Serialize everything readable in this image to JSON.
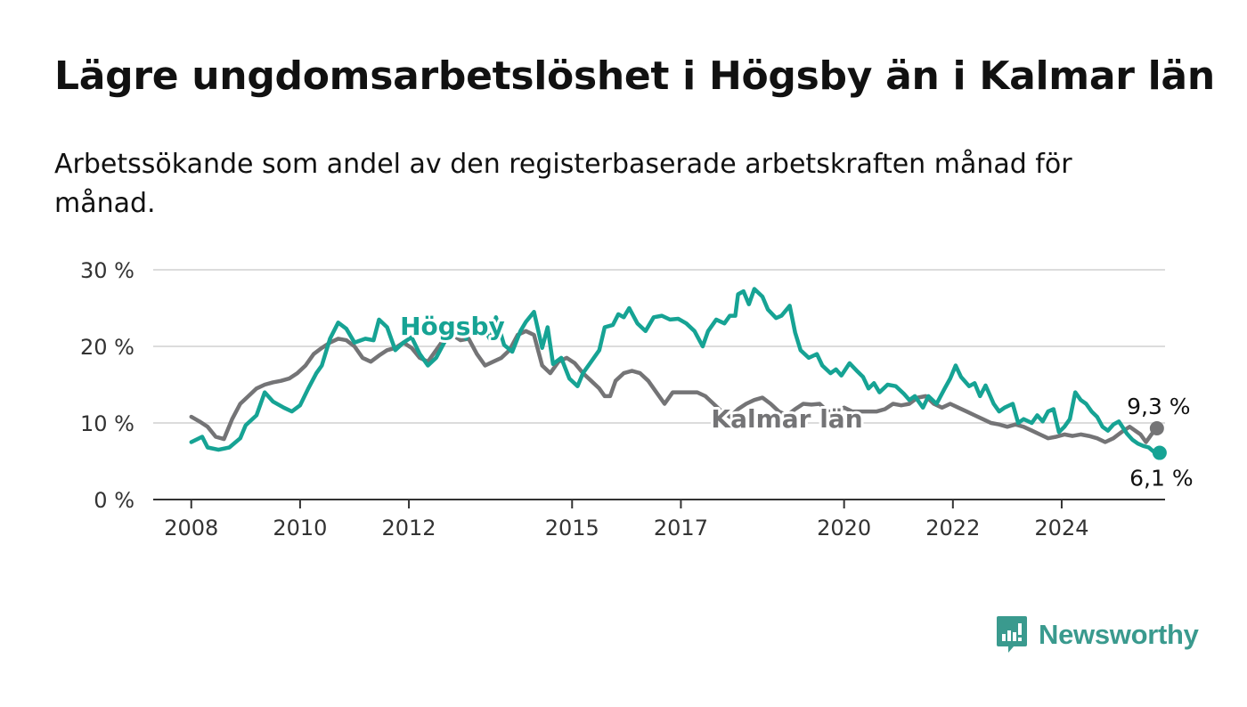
{
  "title": "Lägre ungdomsarbetslöshet i Högsby än i Kalmar län",
  "subtitle": "Arbetssökande som andel av den registerbaserade arbetskraften månad för månad.",
  "brand": {
    "name": "Newsworthy",
    "icon": "newsworthy-logo-icon",
    "color": "#3a9a8e"
  },
  "chart_data": {
    "type": "line",
    "xlim": [
      2007.3,
      2025.9
    ],
    "ylim": [
      0,
      30
    ],
    "x_ticks": [
      2008,
      2010,
      2012,
      2015,
      2017,
      2020,
      2022,
      2024
    ],
    "y_ticks": [
      {
        "value": 0,
        "label": "0 %"
      },
      {
        "value": 10,
        "label": "10 %"
      },
      {
        "value": 20,
        "label": "20 %"
      },
      {
        "value": 30,
        "label": "30 %"
      }
    ],
    "grid": true,
    "series": [
      {
        "name": "Högsby",
        "color": "#16a394",
        "label_at": [
          2012.8,
          21.5
        ],
        "end_label": "6,1 %",
        "points": [
          [
            2008.0,
            7.5
          ],
          [
            2008.2,
            8.2
          ],
          [
            2008.3,
            6.8
          ],
          [
            2008.5,
            6.5
          ],
          [
            2008.7,
            6.8
          ],
          [
            2008.9,
            8.0
          ],
          [
            2009.0,
            9.7
          ],
          [
            2009.2,
            11.0
          ],
          [
            2009.35,
            14.0
          ],
          [
            2009.5,
            12.8
          ],
          [
            2009.7,
            12.0
          ],
          [
            2009.85,
            11.5
          ],
          [
            2010.0,
            12.3
          ],
          [
            2010.15,
            14.5
          ],
          [
            2010.3,
            16.5
          ],
          [
            2010.4,
            17.5
          ],
          [
            2010.55,
            21.0
          ],
          [
            2010.7,
            23.1
          ],
          [
            2010.85,
            22.3
          ],
          [
            2011.0,
            20.5
          ],
          [
            2011.2,
            21.0
          ],
          [
            2011.35,
            20.8
          ],
          [
            2011.45,
            23.5
          ],
          [
            2011.6,
            22.5
          ],
          [
            2011.75,
            19.5
          ],
          [
            2011.9,
            20.5
          ],
          [
            2012.05,
            21.2
          ],
          [
            2012.2,
            19.0
          ],
          [
            2012.35,
            17.5
          ],
          [
            2012.5,
            18.5
          ],
          [
            2012.65,
            20.5
          ],
          [
            2012.8,
            22.5
          ],
          [
            2012.95,
            23.0
          ],
          [
            2013.05,
            21.0
          ],
          [
            2013.2,
            23.3
          ],
          [
            2013.35,
            22.8
          ],
          [
            2013.5,
            20.8
          ],
          [
            2013.6,
            23.8
          ],
          [
            2013.75,
            20.2
          ],
          [
            2013.9,
            19.3
          ],
          [
            2014.05,
            22.0
          ],
          [
            2014.15,
            23.2
          ],
          [
            2014.3,
            24.5
          ],
          [
            2014.45,
            19.8
          ],
          [
            2014.55,
            22.5
          ],
          [
            2014.65,
            17.7
          ],
          [
            2014.8,
            18.5
          ],
          [
            2014.95,
            15.8
          ],
          [
            2015.1,
            14.8
          ],
          [
            2015.2,
            16.5
          ],
          [
            2015.35,
            18.0
          ],
          [
            2015.5,
            19.5
          ],
          [
            2015.6,
            22.5
          ],
          [
            2015.75,
            22.8
          ],
          [
            2015.85,
            24.2
          ],
          [
            2015.95,
            23.8
          ],
          [
            2016.05,
            25.0
          ],
          [
            2016.2,
            23.0
          ],
          [
            2016.35,
            22.0
          ],
          [
            2016.5,
            23.8
          ],
          [
            2016.65,
            24.0
          ],
          [
            2016.8,
            23.5
          ],
          [
            2016.95,
            23.6
          ],
          [
            2017.1,
            23.0
          ],
          [
            2017.25,
            22.0
          ],
          [
            2017.4,
            20.0
          ],
          [
            2017.5,
            22.0
          ],
          [
            2017.65,
            23.5
          ],
          [
            2017.8,
            23.0
          ],
          [
            2017.9,
            24.0
          ],
          [
            2018.0,
            24.0
          ],
          [
            2018.05,
            26.8
          ],
          [
            2018.15,
            27.2
          ],
          [
            2018.25,
            25.5
          ],
          [
            2018.35,
            27.5
          ],
          [
            2018.5,
            26.5
          ],
          [
            2018.6,
            24.8
          ],
          [
            2018.75,
            23.7
          ],
          [
            2018.85,
            24.0
          ],
          [
            2019.0,
            25.3
          ],
          [
            2019.1,
            21.8
          ],
          [
            2019.2,
            19.5
          ],
          [
            2019.35,
            18.5
          ],
          [
            2019.5,
            19.0
          ],
          [
            2019.6,
            17.5
          ],
          [
            2019.75,
            16.5
          ],
          [
            2019.85,
            17.0
          ],
          [
            2019.95,
            16.2
          ],
          [
            2020.1,
            17.8
          ],
          [
            2020.25,
            16.7
          ],
          [
            2020.35,
            16.0
          ],
          [
            2020.45,
            14.5
          ],
          [
            2020.55,
            15.2
          ],
          [
            2020.65,
            14.0
          ],
          [
            2020.8,
            15.0
          ],
          [
            2020.95,
            14.8
          ],
          [
            2021.1,
            13.8
          ],
          [
            2021.2,
            13.0
          ],
          [
            2021.3,
            13.5
          ],
          [
            2021.45,
            12.0
          ],
          [
            2021.55,
            13.5
          ],
          [
            2021.7,
            12.5
          ],
          [
            2021.85,
            14.5
          ],
          [
            2021.95,
            15.8
          ],
          [
            2022.05,
            17.5
          ],
          [
            2022.15,
            16.0
          ],
          [
            2022.3,
            14.8
          ],
          [
            2022.4,
            15.2
          ],
          [
            2022.5,
            13.5
          ],
          [
            2022.6,
            14.9
          ],
          [
            2022.75,
            12.5
          ],
          [
            2022.85,
            11.5
          ],
          [
            2022.95,
            12.0
          ],
          [
            2023.1,
            12.5
          ],
          [
            2023.2,
            10.0
          ],
          [
            2023.3,
            10.5
          ],
          [
            2023.45,
            10.0
          ],
          [
            2023.55,
            11.0
          ],
          [
            2023.65,
            10.2
          ],
          [
            2023.75,
            11.5
          ],
          [
            2023.85,
            11.8
          ],
          [
            2023.95,
            8.8
          ],
          [
            2024.05,
            9.5
          ],
          [
            2024.15,
            10.5
          ],
          [
            2024.25,
            14.0
          ],
          [
            2024.35,
            13.0
          ],
          [
            2024.45,
            12.5
          ],
          [
            2024.55,
            11.5
          ],
          [
            2024.65,
            10.8
          ],
          [
            2024.75,
            9.5
          ],
          [
            2024.85,
            9.0
          ],
          [
            2024.95,
            9.8
          ],
          [
            2025.05,
            10.2
          ],
          [
            2025.2,
            8.6
          ],
          [
            2025.3,
            7.8
          ],
          [
            2025.4,
            7.3
          ],
          [
            2025.5,
            7.0
          ],
          [
            2025.6,
            6.8
          ],
          [
            2025.7,
            6.2
          ],
          [
            2025.8,
            6.1
          ]
        ]
      },
      {
        "name": "Kalmar län",
        "color": "#747476",
        "label_at": [
          2018.95,
          9.4
        ],
        "end_label": "9,3 %",
        "points": [
          [
            2008.0,
            10.8
          ],
          [
            2008.15,
            10.2
          ],
          [
            2008.3,
            9.5
          ],
          [
            2008.45,
            8.2
          ],
          [
            2008.6,
            7.9
          ],
          [
            2008.75,
            10.5
          ],
          [
            2008.9,
            12.5
          ],
          [
            2009.05,
            13.5
          ],
          [
            2009.2,
            14.5
          ],
          [
            2009.35,
            15.0
          ],
          [
            2009.5,
            15.3
          ],
          [
            2009.65,
            15.5
          ],
          [
            2009.8,
            15.8
          ],
          [
            2009.95,
            16.5
          ],
          [
            2010.1,
            17.5
          ],
          [
            2010.25,
            19.0
          ],
          [
            2010.4,
            19.8
          ],
          [
            2010.55,
            20.5
          ],
          [
            2010.7,
            21.0
          ],
          [
            2010.85,
            20.8
          ],
          [
            2011.0,
            20.0
          ],
          [
            2011.15,
            18.5
          ],
          [
            2011.3,
            18.0
          ],
          [
            2011.45,
            18.8
          ],
          [
            2011.6,
            19.5
          ],
          [
            2011.75,
            19.8
          ],
          [
            2011.9,
            20.5
          ],
          [
            2012.05,
            19.8
          ],
          [
            2012.2,
            18.5
          ],
          [
            2012.35,
            18.0
          ],
          [
            2012.5,
            19.5
          ],
          [
            2012.65,
            21.0
          ],
          [
            2012.8,
            21.5
          ],
          [
            2012.95,
            20.8
          ],
          [
            2013.1,
            21.0
          ],
          [
            2013.25,
            19.0
          ],
          [
            2013.4,
            17.5
          ],
          [
            2013.55,
            18.0
          ],
          [
            2013.7,
            18.5
          ],
          [
            2013.85,
            19.5
          ],
          [
            2014.0,
            21.5
          ],
          [
            2014.15,
            22.0
          ],
          [
            2014.3,
            21.5
          ],
          [
            2014.45,
            17.5
          ],
          [
            2014.6,
            16.5
          ],
          [
            2014.75,
            18.0
          ],
          [
            2014.9,
            18.5
          ],
          [
            2015.05,
            17.8
          ],
          [
            2015.2,
            16.5
          ],
          [
            2015.35,
            15.5
          ],
          [
            2015.5,
            14.5
          ],
          [
            2015.6,
            13.5
          ],
          [
            2015.7,
            13.5
          ],
          [
            2015.8,
            15.5
          ],
          [
            2015.95,
            16.5
          ],
          [
            2016.1,
            16.8
          ],
          [
            2016.25,
            16.5
          ],
          [
            2016.4,
            15.5
          ],
          [
            2016.55,
            14.0
          ],
          [
            2016.7,
            12.5
          ],
          [
            2016.85,
            14.0
          ],
          [
            2017.0,
            14.0
          ],
          [
            2017.15,
            14.0
          ],
          [
            2017.3,
            14.0
          ],
          [
            2017.45,
            13.5
          ],
          [
            2017.6,
            12.5
          ],
          [
            2017.75,
            11.5
          ],
          [
            2017.9,
            10.8
          ],
          [
            2018.05,
            11.8
          ],
          [
            2018.2,
            12.5
          ],
          [
            2018.35,
            13.0
          ],
          [
            2018.5,
            13.3
          ],
          [
            2018.65,
            12.5
          ],
          [
            2018.8,
            11.5
          ],
          [
            2018.95,
            11.0
          ],
          [
            2019.1,
            11.8
          ],
          [
            2019.25,
            12.5
          ],
          [
            2019.4,
            12.4
          ],
          [
            2019.55,
            12.5
          ],
          [
            2019.7,
            11.5
          ],
          [
            2019.85,
            11.5
          ],
          [
            2020.0,
            12.0
          ],
          [
            2020.15,
            11.5
          ],
          [
            2020.3,
            11.5
          ],
          [
            2020.45,
            11.5
          ],
          [
            2020.6,
            11.5
          ],
          [
            2020.75,
            11.8
          ],
          [
            2020.9,
            12.5
          ],
          [
            2021.05,
            12.3
          ],
          [
            2021.2,
            12.5
          ],
          [
            2021.35,
            13.3
          ],
          [
            2021.5,
            13.5
          ],
          [
            2021.65,
            12.5
          ],
          [
            2021.8,
            12.0
          ],
          [
            2021.95,
            12.5
          ],
          [
            2022.1,
            12.0
          ],
          [
            2022.25,
            11.5
          ],
          [
            2022.4,
            11.0
          ],
          [
            2022.55,
            10.5
          ],
          [
            2022.7,
            10.0
          ],
          [
            2022.85,
            9.8
          ],
          [
            2023.0,
            9.5
          ],
          [
            2023.15,
            9.8
          ],
          [
            2023.3,
            9.5
          ],
          [
            2023.45,
            9.0
          ],
          [
            2023.6,
            8.5
          ],
          [
            2023.75,
            8.0
          ],
          [
            2023.9,
            8.2
          ],
          [
            2024.05,
            8.5
          ],
          [
            2024.2,
            8.3
          ],
          [
            2024.35,
            8.5
          ],
          [
            2024.5,
            8.3
          ],
          [
            2024.65,
            8.0
          ],
          [
            2024.8,
            7.5
          ],
          [
            2024.95,
            8.0
          ],
          [
            2025.1,
            8.8
          ],
          [
            2025.25,
            9.5
          ],
          [
            2025.35,
            9.0
          ],
          [
            2025.45,
            8.5
          ],
          [
            2025.55,
            7.5
          ],
          [
            2025.65,
            8.5
          ],
          [
            2025.75,
            9.3
          ]
        ]
      }
    ]
  }
}
